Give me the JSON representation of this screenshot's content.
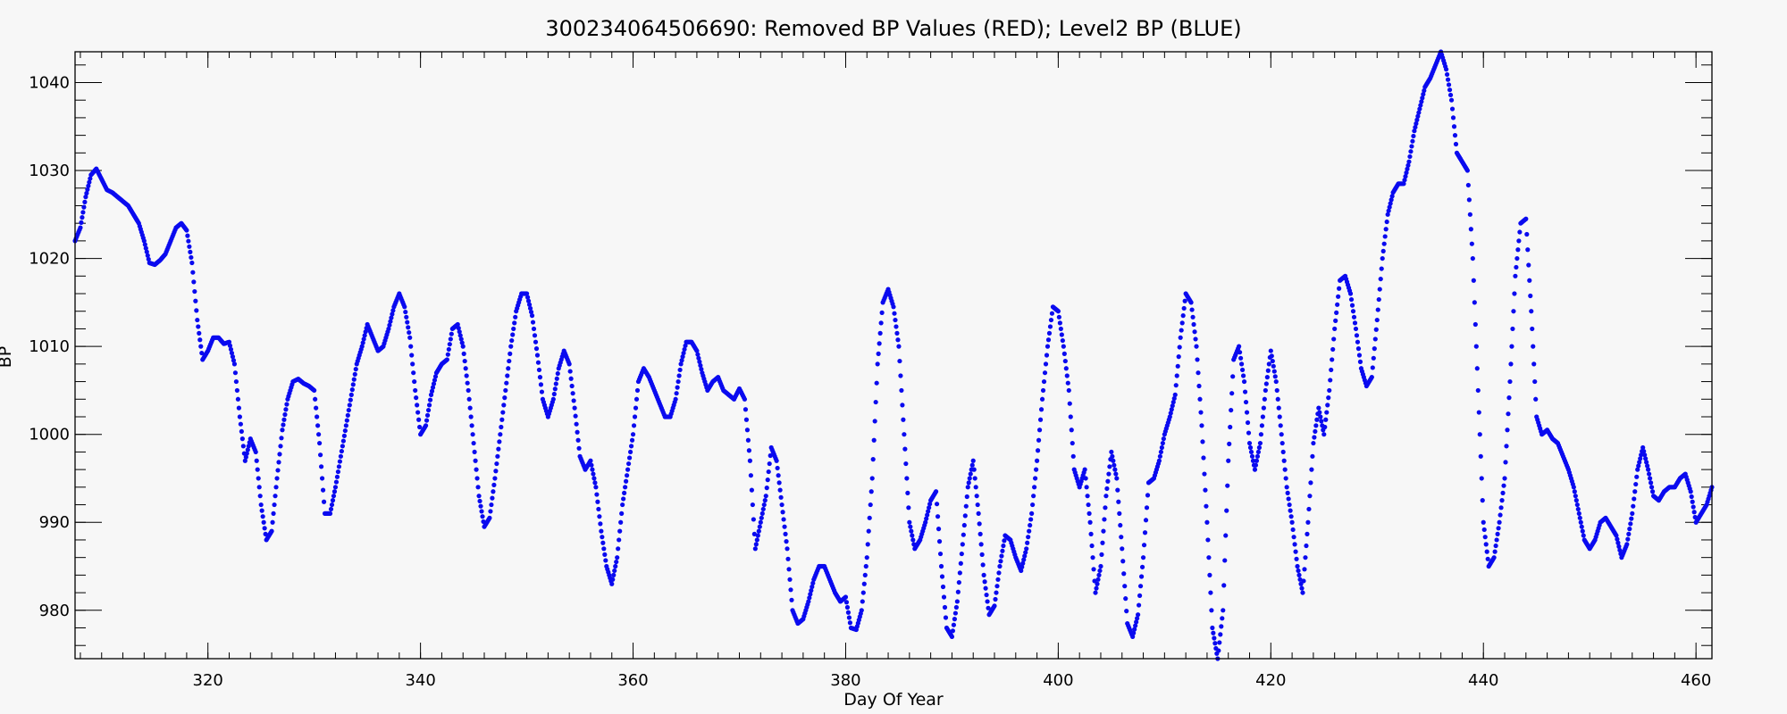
{
  "chart_data": {
    "type": "scatter",
    "title": "300234064506690: Removed BP Values (RED); Level2 BP (BLUE)",
    "xlabel": "Day Of Year",
    "ylabel": "BP",
    "xlim": [
      307.5,
      461.5
    ],
    "ylim": [
      974.5,
      1043.5
    ],
    "xticks": [
      320,
      340,
      360,
      380,
      400,
      420,
      440,
      460
    ],
    "yticks": [
      980,
      990,
      1000,
      1010,
      1020,
      1030,
      1040
    ],
    "x_minor_step": 2,
    "y_minor_step": 2,
    "grid": false,
    "series": [
      {
        "name": "Level2 BP",
        "color": "#0a0aef",
        "points": [
          [
            307.5,
            1022
          ],
          [
            308,
            1023.5
          ],
          [
            308.5,
            1027
          ],
          [
            309,
            1029.5
          ],
          [
            309.5,
            1030.2
          ],
          [
            310,
            1029
          ],
          [
            310.5,
            1027.8
          ],
          [
            311,
            1027.5
          ],
          [
            311.5,
            1027
          ],
          [
            312,
            1026.5
          ],
          [
            312.5,
            1026
          ],
          [
            313,
            1025
          ],
          [
            313.5,
            1024
          ],
          [
            314,
            1022
          ],
          [
            314.5,
            1019.5
          ],
          [
            315,
            1019.3
          ],
          [
            315.5,
            1019.8
          ],
          [
            316,
            1020.5
          ],
          [
            316.5,
            1022
          ],
          [
            317,
            1023.5
          ],
          [
            317.5,
            1024
          ],
          [
            318,
            1023.2
          ],
          [
            318.5,
            1019.5
          ],
          [
            319,
            1013
          ],
          [
            319.5,
            1008.5
          ],
          [
            320,
            1009.5
          ],
          [
            320.5,
            1011
          ],
          [
            321,
            1011
          ],
          [
            321.5,
            1010.3
          ],
          [
            322,
            1010.5
          ],
          [
            322.5,
            1008
          ],
          [
            323,
            1002
          ],
          [
            323.5,
            997
          ],
          [
            324,
            999.5
          ],
          [
            324.5,
            998
          ],
          [
            325,
            992
          ],
          [
            325.5,
            988
          ],
          [
            326,
            989
          ],
          [
            326.5,
            995
          ],
          [
            327,
            1000.5
          ],
          [
            327.5,
            1004
          ],
          [
            328,
            1006
          ],
          [
            328.5,
            1006.3
          ],
          [
            329,
            1005.8
          ],
          [
            329.5,
            1005.5
          ],
          [
            330,
            1005
          ],
          [
            330.5,
            999
          ],
          [
            331,
            991
          ],
          [
            331.5,
            991
          ],
          [
            332,
            994
          ],
          [
            332.5,
            997.5
          ],
          [
            333,
            1001
          ],
          [
            333.5,
            1004.5
          ],
          [
            334,
            1008
          ],
          [
            334.5,
            1010
          ],
          [
            335,
            1012.5
          ],
          [
            335.5,
            1011
          ],
          [
            336,
            1009.5
          ],
          [
            336.5,
            1010
          ],
          [
            337,
            1012
          ],
          [
            337.5,
            1014.5
          ],
          [
            338,
            1016
          ],
          [
            338.5,
            1014.5
          ],
          [
            339,
            1011
          ],
          [
            339.5,
            1005
          ],
          [
            340,
            1000
          ],
          [
            340.5,
            1001
          ],
          [
            341,
            1004.5
          ],
          [
            341.5,
            1007
          ],
          [
            342,
            1008
          ],
          [
            342.5,
            1008.5
          ],
          [
            343,
            1012
          ],
          [
            343.5,
            1012.5
          ],
          [
            344,
            1010
          ],
          [
            344.5,
            1005
          ],
          [
            345,
            999
          ],
          [
            345.5,
            993
          ],
          [
            346,
            989.5
          ],
          [
            346.5,
            990.5
          ],
          [
            347,
            995
          ],
          [
            347.5,
            1000
          ],
          [
            348,
            1005
          ],
          [
            348.5,
            1010
          ],
          [
            349,
            1014
          ],
          [
            349.5,
            1016
          ],
          [
            350,
            1016
          ],
          [
            350.5,
            1013.5
          ],
          [
            351,
            1009
          ],
          [
            351.5,
            1004
          ],
          [
            352,
            1002
          ],
          [
            352.5,
            1004
          ],
          [
            353,
            1007.5
          ],
          [
            353.5,
            1009.5
          ],
          [
            354,
            1008
          ],
          [
            354.5,
            1003
          ],
          [
            355,
            997.5
          ],
          [
            355.5,
            996
          ],
          [
            356,
            997
          ],
          [
            356.5,
            994
          ],
          [
            357,
            989
          ],
          [
            357.5,
            985
          ],
          [
            358,
            983
          ],
          [
            358.5,
            986
          ],
          [
            359,
            992
          ],
          [
            359.5,
            996
          ],
          [
            360,
            1000
          ],
          [
            360.5,
            1006
          ],
          [
            361,
            1007.5
          ],
          [
            361.5,
            1006.5
          ],
          [
            362,
            1005
          ],
          [
            362.5,
            1003.5
          ],
          [
            363,
            1002
          ],
          [
            363.5,
            1002
          ],
          [
            364,
            1004
          ],
          [
            364.5,
            1008
          ],
          [
            365,
            1010.5
          ],
          [
            365.5,
            1010.5
          ],
          [
            366,
            1009.5
          ],
          [
            366.5,
            1007
          ],
          [
            367,
            1005
          ],
          [
            367.5,
            1006
          ],
          [
            368,
            1006.5
          ],
          [
            368.5,
            1005
          ],
          [
            369,
            1004.5
          ],
          [
            369.5,
            1004
          ],
          [
            370,
            1005.2
          ],
          [
            370.5,
            1004
          ],
          [
            371,
            997
          ],
          [
            371.5,
            987
          ],
          [
            372,
            990
          ],
          [
            372.5,
            993
          ],
          [
            373,
            998.5
          ],
          [
            373.5,
            997
          ],
          [
            374,
            992
          ],
          [
            374.5,
            987
          ],
          [
            375,
            980
          ],
          [
            375.5,
            978.5
          ],
          [
            376,
            979
          ],
          [
            376.5,
            981
          ],
          [
            377,
            983.5
          ],
          [
            377.5,
            985
          ],
          [
            378,
            985
          ],
          [
            378.5,
            983.5
          ],
          [
            379,
            982
          ],
          [
            379.5,
            981
          ],
          [
            380,
            981.5
          ],
          [
            380.5,
            978
          ],
          [
            381,
            977.8
          ],
          [
            381.5,
            980
          ],
          [
            382,
            986
          ],
          [
            382.5,
            995
          ],
          [
            383,
            1008
          ],
          [
            383.5,
            1015
          ],
          [
            384,
            1016.5
          ],
          [
            384.5,
            1014.5
          ],
          [
            385,
            1010
          ],
          [
            385.5,
            1000
          ],
          [
            386,
            990
          ],
          [
            386.5,
            987
          ],
          [
            387,
            988
          ],
          [
            387.5,
            990
          ],
          [
            388,
            992.5
          ],
          [
            388.5,
            993.5
          ],
          [
            389,
            985
          ],
          [
            389.5,
            978
          ],
          [
            390,
            977
          ],
          [
            390.5,
            981
          ],
          [
            391,
            987.5
          ],
          [
            391.5,
            994
          ],
          [
            392,
            997
          ],
          [
            392.5,
            991
          ],
          [
            393,
            984
          ],
          [
            393.5,
            979.5
          ],
          [
            394,
            980.5
          ],
          [
            394.5,
            985
          ],
          [
            395,
            988.5
          ],
          [
            395.5,
            988
          ],
          [
            396,
            986
          ],
          [
            396.5,
            984.5
          ],
          [
            397,
            987
          ],
          [
            397.5,
            991
          ],
          [
            398,
            997
          ],
          [
            398.5,
            1004
          ],
          [
            399,
            1010
          ],
          [
            399.5,
            1014.5
          ],
          [
            400,
            1014
          ],
          [
            400.5,
            1010
          ],
          [
            401,
            1005
          ],
          [
            401.5,
            996
          ],
          [
            402,
            994
          ],
          [
            402.5,
            996
          ],
          [
            403,
            990
          ],
          [
            403.5,
            982
          ],
          [
            404,
            985
          ],
          [
            404.5,
            993
          ],
          [
            405,
            998
          ],
          [
            405.5,
            995
          ],
          [
            406,
            987
          ],
          [
            406.5,
            978.5
          ],
          [
            407,
            977
          ],
          [
            407.5,
            979.5
          ],
          [
            408,
            986
          ],
          [
            408.5,
            994.5
          ],
          [
            409,
            995
          ],
          [
            409.5,
            997
          ],
          [
            410,
            1000
          ],
          [
            410.5,
            1002
          ],
          [
            411,
            1004.5
          ],
          [
            411.5,
            1011
          ],
          [
            412,
            1016
          ],
          [
            412.5,
            1015
          ],
          [
            413,
            1010
          ],
          [
            413.5,
            1001
          ],
          [
            414,
            990
          ],
          [
            414.5,
            978
          ],
          [
            415,
            974.5
          ],
          [
            415.5,
            980
          ],
          [
            416,
            997
          ],
          [
            416.5,
            1008.5
          ],
          [
            417,
            1010
          ],
          [
            417.5,
            1006
          ],
          [
            418,
            999
          ],
          [
            418.5,
            996
          ],
          [
            419,
            999
          ],
          [
            419.5,
            1005
          ],
          [
            420,
            1009.5
          ],
          [
            420.5,
            1006
          ],
          [
            421,
            1000
          ],
          [
            421.5,
            994
          ],
          [
            422,
            990
          ],
          [
            422.5,
            985
          ],
          [
            423,
            982
          ],
          [
            423.5,
            990
          ],
          [
            424,
            999
          ],
          [
            424.5,
            1003
          ],
          [
            425,
            1000
          ],
          [
            425.5,
            1005
          ],
          [
            426,
            1012
          ],
          [
            426.5,
            1017.5
          ],
          [
            427,
            1018
          ],
          [
            427.5,
            1016
          ],
          [
            428,
            1012
          ],
          [
            428.5,
            1007.5
          ],
          [
            429,
            1005.5
          ],
          [
            429.5,
            1006.5
          ],
          [
            430,
            1013
          ],
          [
            430.5,
            1020
          ],
          [
            431,
            1025
          ],
          [
            431.5,
            1027.5
          ],
          [
            432,
            1028.5
          ],
          [
            432.5,
            1028.5
          ],
          [
            433,
            1031
          ],
          [
            433.5,
            1034.5
          ],
          [
            434,
            1037
          ],
          [
            434.5,
            1039.5
          ],
          [
            435,
            1040.5
          ],
          [
            435.5,
            1042
          ],
          [
            436,
            1043.5
          ],
          [
            436.5,
            1041.5
          ],
          [
            437,
            1038
          ],
          [
            437.5,
            1032
          ],
          [
            438,
            1031
          ],
          [
            438.5,
            1030
          ],
          [
            439,
            1020
          ],
          [
            439.5,
            1005
          ],
          [
            440,
            990
          ],
          [
            440.5,
            985
          ],
          [
            441,
            986
          ],
          [
            441.5,
            990
          ],
          [
            442,
            995
          ],
          [
            442.5,
            1006
          ],
          [
            443,
            1018
          ],
          [
            443.5,
            1024
          ],
          [
            444,
            1024.5
          ],
          [
            444.5,
            1014
          ],
          [
            445,
            1002
          ],
          [
            445.5,
            1000
          ],
          [
            446,
            1000.5
          ],
          [
            446.5,
            999.5
          ],
          [
            447,
            999
          ],
          [
            447.5,
            997.5
          ],
          [
            448,
            996
          ],
          [
            448.5,
            994
          ],
          [
            449,
            991
          ],
          [
            449.5,
            988
          ],
          [
            450,
            987
          ],
          [
            450.5,
            988
          ],
          [
            451,
            990
          ],
          [
            451.5,
            990.5
          ],
          [
            452,
            989.5
          ],
          [
            452.5,
            988.5
          ],
          [
            453,
            986
          ],
          [
            453.5,
            987.5
          ],
          [
            454,
            991
          ],
          [
            454.5,
            996
          ],
          [
            455,
            998.5
          ],
          [
            455.5,
            996
          ],
          [
            456,
            993
          ],
          [
            456.5,
            992.5
          ],
          [
            457,
            993.5
          ],
          [
            457.5,
            994
          ],
          [
            458,
            994
          ],
          [
            458.5,
            995
          ],
          [
            459,
            995.5
          ],
          [
            459.5,
            993.5
          ],
          [
            460,
            990
          ],
          [
            460.5,
            991
          ],
          [
            461,
            992
          ],
          [
            461.5,
            994
          ]
        ]
      }
    ]
  }
}
